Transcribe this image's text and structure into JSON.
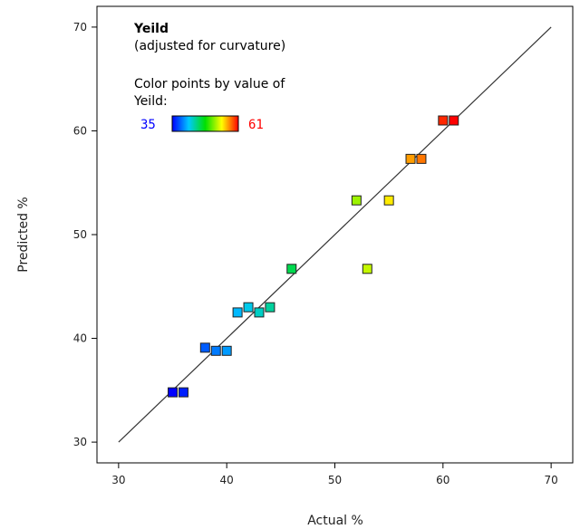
{
  "chart_data": {
    "type": "scatter",
    "xlabel": "Actual %",
    "ylabel": "Predicted %",
    "xlim": [
      28,
      72
    ],
    "ylim": [
      28,
      72
    ],
    "x_ticks": [
      30,
      40,
      50,
      60,
      70
    ],
    "y_ticks": [
      30,
      40,
      50,
      60,
      70
    ],
    "grid": false,
    "reference_line": {
      "from": [
        30,
        30
      ],
      "to": [
        70,
        70
      ]
    },
    "legend": {
      "title": "Yeild",
      "subtitle": "(adjusted for curvature)",
      "color_caption_1": "Color points by value of",
      "color_caption_2": "Yeild:",
      "min_label": "35",
      "max_label": "61",
      "placement": "top-left"
    },
    "color_scale": {
      "min": 35,
      "max": 61,
      "stops": [
        "#0000ff",
        "#00c8ff",
        "#00e000",
        "#ffff00",
        "#ff0000"
      ],
      "min_label_color": "#0000ff",
      "max_label_color": "#ff0000"
    },
    "points": [
      {
        "x": 35,
        "y": 34.8
      },
      {
        "x": 36,
        "y": 34.8
      },
      {
        "x": 38,
        "y": 39.1
      },
      {
        "x": 39,
        "y": 38.8
      },
      {
        "x": 40,
        "y": 38.8
      },
      {
        "x": 41,
        "y": 42.5
      },
      {
        "x": 42,
        "y": 43.0
      },
      {
        "x": 43,
        "y": 42.5
      },
      {
        "x": 44,
        "y": 43.0
      },
      {
        "x": 46,
        "y": 46.7
      },
      {
        "x": 52,
        "y": 53.3
      },
      {
        "x": 53,
        "y": 46.7
      },
      {
        "x": 55,
        "y": 53.3
      },
      {
        "x": 57,
        "y": 57.3
      },
      {
        "x": 58,
        "y": 57.3
      },
      {
        "x": 60,
        "y": 61.0
      },
      {
        "x": 61,
        "y": 61.0
      }
    ]
  }
}
